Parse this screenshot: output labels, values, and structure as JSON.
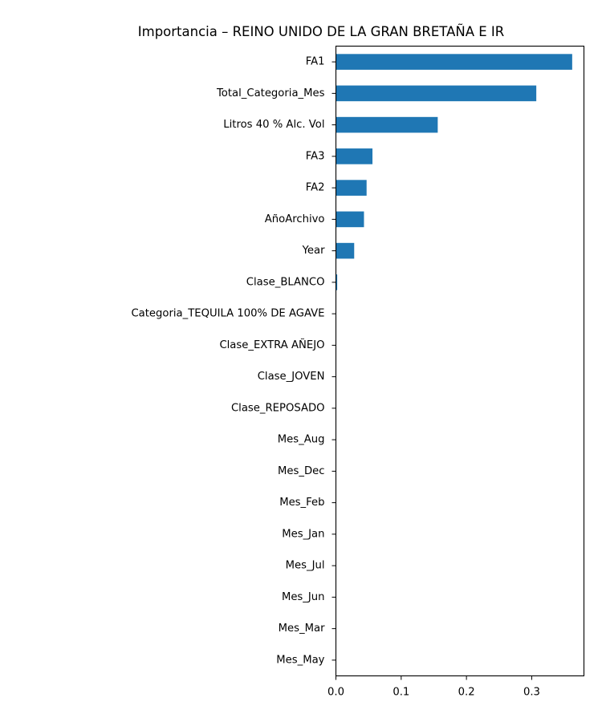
{
  "chart_data": {
    "type": "bar",
    "orientation": "horizontal",
    "title": "Importancia – REINO UNIDO DE LA GRAN BRETAÑA E IR",
    "xlabel": "",
    "ylabel": "",
    "xlim": [
      0,
      0.38
    ],
    "xticks": [
      "0.0",
      "0.1",
      "0.2",
      "0.3"
    ],
    "xtick_values": [
      0.0,
      0.1,
      0.2,
      0.3
    ],
    "bar_color": "#1f77b4",
    "grid": false,
    "categories": [
      "FA1",
      "Total_Categoria_Mes",
      "Litros 40 % Alc. Vol",
      "FA3",
      "FA2",
      "AñoArchivo",
      "Year",
      "Clase_BLANCO",
      "Categoria_TEQUILA 100% DE AGAVE",
      "Clase_EXTRA AÑEJO",
      "Clase_JOVEN",
      "Clase_REPOSADO",
      "Mes_Aug",
      "Mes_Dec",
      "Mes_Feb",
      "Mes_Jan",
      "Mes_Jul",
      "Mes_Jun",
      "Mes_Mar",
      "Mes_May"
    ],
    "values": [
      0.362,
      0.307,
      0.156,
      0.056,
      0.047,
      0.043,
      0.028,
      0.002,
      0,
      0,
      0,
      0,
      0,
      0,
      0,
      0,
      0,
      0,
      0,
      0
    ]
  }
}
